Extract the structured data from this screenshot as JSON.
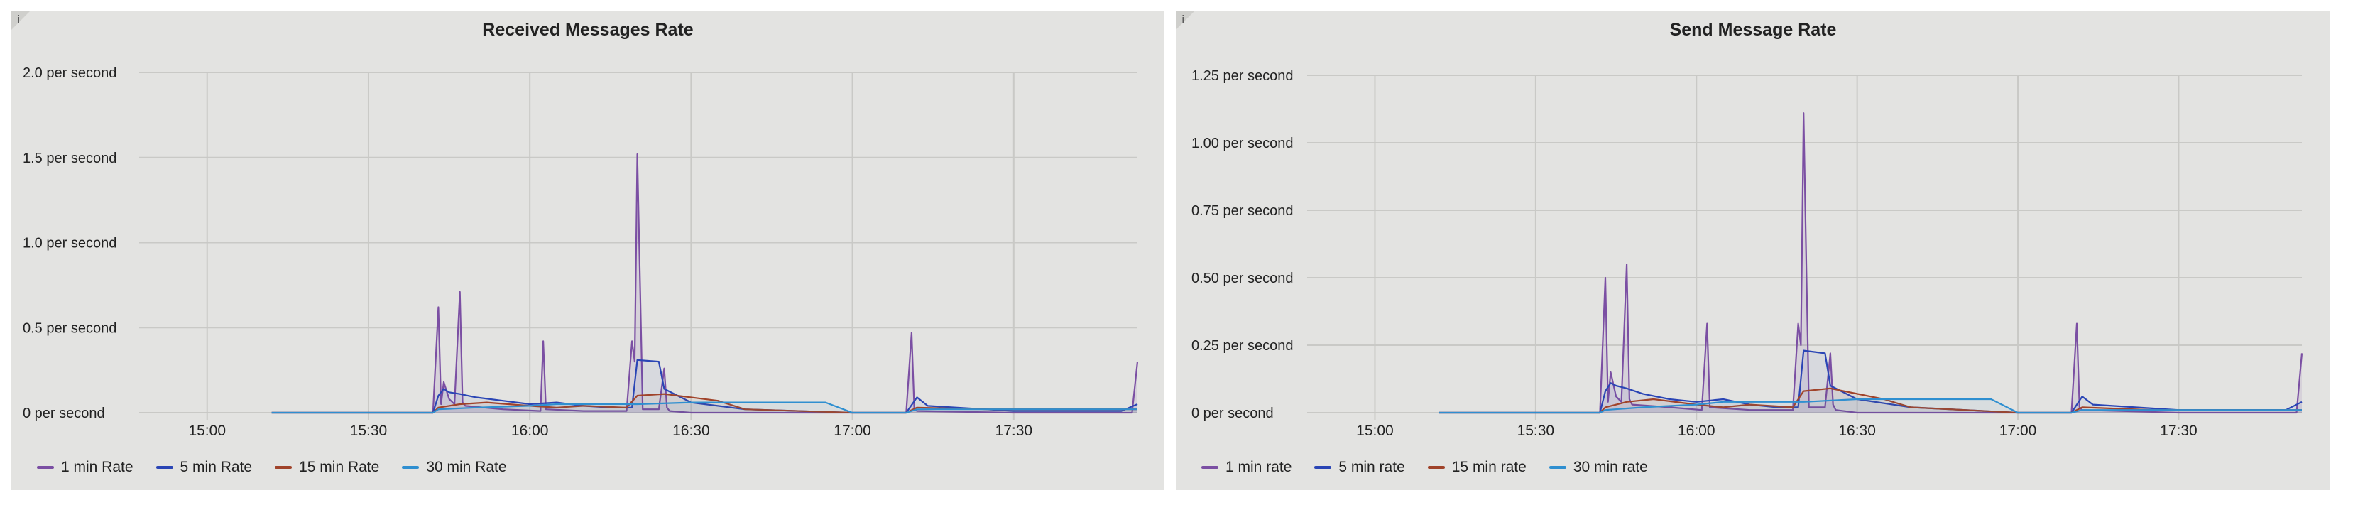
{
  "colors": {
    "series1": "#7b4fa3",
    "series2": "#2a45b5",
    "series3": "#a0432a",
    "series4": "#2f8fd0",
    "grid": "#c9c9c6",
    "panel_bg": "#e3e3e1"
  },
  "panels": [
    {
      "info_icon": "i"
    },
    {
      "info_icon": "i"
    }
  ],
  "chart_data": [
    {
      "type": "line",
      "title": "Received Messages Rate",
      "xlabel": "",
      "ylabel": "",
      "x_tick_labels": [
        "15:00",
        "15:30",
        "16:00",
        "16:30",
        "17:00",
        "17:30"
      ],
      "y_tick_labels": [
        "0 per second",
        "0.5 per second",
        "1.0 per second",
        "1.5 per second",
        "2.0 per second"
      ],
      "x_range": [
        "14:50",
        "17:53"
      ],
      "ylim": [
        0,
        2.0
      ],
      "grid": true,
      "legend_position": "bottom-left",
      "series": [
        {
          "name": "1 min Rate",
          "x": [
            "14:50",
            "15:12",
            "15:42",
            "15:43",
            "15:43.5",
            "15:44",
            "15:45",
            "15:46",
            "15:47",
            "15:47.5",
            "15:48",
            "15:55",
            "16:02",
            "16:02.5",
            "16:03",
            "16:10",
            "16:18",
            "16:19",
            "16:19.5",
            "16:20",
            "16:21",
            "16:24",
            "16:25",
            "16:25.5",
            "16:26",
            "16:30",
            "17:10",
            "17:11",
            "17:11.5",
            "17:12",
            "17:30",
            "17:52",
            "17:53"
          ],
          "y": [
            null,
            0,
            0,
            0.62,
            0.05,
            0.18,
            0.08,
            0.05,
            0.71,
            0.06,
            0.04,
            0.02,
            0.01,
            0.42,
            0.02,
            0.01,
            0.01,
            0.42,
            0.3,
            1.52,
            0.02,
            0.02,
            0.26,
            0.03,
            0.01,
            0,
            0,
            0.47,
            0.02,
            0.01,
            0,
            0,
            0.3
          ]
        },
        {
          "name": "5 min Rate",
          "x": [
            "14:50",
            "15:12",
            "15:42",
            "15:43",
            "15:44",
            "15:45",
            "15:47",
            "15:50",
            "15:55",
            "16:00",
            "16:05",
            "16:10",
            "16:15",
            "16:19",
            "16:20",
            "16:24",
            "16:25",
            "16:30",
            "16:40",
            "17:00",
            "17:10",
            "17:12",
            "17:14",
            "17:30",
            "17:50",
            "17:53"
          ],
          "y": [
            null,
            0,
            0,
            0.1,
            0.14,
            0.12,
            0.11,
            0.09,
            0.07,
            0.05,
            0.06,
            0.04,
            0.03,
            0.03,
            0.31,
            0.3,
            0.14,
            0.06,
            0.02,
            0,
            0,
            0.09,
            0.04,
            0.01,
            0.01,
            0.05
          ]
        },
        {
          "name": "15 min Rate",
          "x": [
            "14:50",
            "15:12",
            "15:42",
            "15:43",
            "15:47",
            "15:52",
            "16:00",
            "16:05",
            "16:10",
            "16:18",
            "16:20",
            "16:25",
            "16:35",
            "16:40",
            "17:00",
            "17:10",
            "17:12",
            "17:25",
            "17:53"
          ],
          "y": [
            null,
            0,
            0,
            0.03,
            0.05,
            0.06,
            0.04,
            0.03,
            0.04,
            0.03,
            0.1,
            0.11,
            0.07,
            0.02,
            0,
            0,
            0.03,
            0.02,
            0.02
          ]
        },
        {
          "name": "30 min Rate",
          "x": [
            "14:50",
            "15:12",
            "15:42",
            "15:43",
            "15:50",
            "16:00",
            "16:05",
            "16:15",
            "16:20",
            "16:30",
            "16:40",
            "16:55",
            "17:00",
            "17:10",
            "17:12",
            "17:53"
          ],
          "y": [
            null,
            0,
            0,
            0.02,
            0.03,
            0.04,
            0.05,
            0.05,
            0.05,
            0.06,
            0.06,
            0.06,
            0,
            0,
            0.02,
            0.02
          ]
        }
      ]
    },
    {
      "type": "line",
      "title": "Send Message Rate",
      "xlabel": "",
      "ylabel": "",
      "x_tick_labels": [
        "15:00",
        "15:30",
        "16:00",
        "16:30",
        "17:00",
        "17:30"
      ],
      "y_tick_labels": [
        "0 per second",
        "0.25 per second",
        "0.50 per second",
        "0.75 per second",
        "1.00 per second",
        "1.25 per second"
      ],
      "x_range": [
        "14:50",
        "17:53"
      ],
      "ylim": [
        0,
        1.25
      ],
      "grid": true,
      "legend_position": "bottom-left",
      "series": [
        {
          "name": "1 min rate",
          "x": [
            "14:50",
            "15:12",
            "15:42",
            "15:43",
            "15:43.5",
            "15:44",
            "15:45",
            "15:46",
            "15:47",
            "15:47.5",
            "15:48",
            "15:55",
            "16:01",
            "16:02",
            "16:02.5",
            "16:10",
            "16:18",
            "16:19",
            "16:19.5",
            "16:20",
            "16:21",
            "16:24",
            "16:25",
            "16:25.5",
            "16:26",
            "16:30",
            "17:10",
            "17:11",
            "17:11.5",
            "17:12",
            "17:30",
            "17:52",
            "17:53"
          ],
          "y": [
            null,
            0,
            0,
            0.5,
            0.04,
            0.15,
            0.06,
            0.04,
            0.55,
            0.05,
            0.03,
            0.02,
            0.01,
            0.33,
            0.02,
            0.01,
            0.01,
            0.33,
            0.25,
            1.11,
            0.02,
            0.02,
            0.22,
            0.03,
            0.01,
            0,
            0,
            0.33,
            0.02,
            0.01,
            0,
            0,
            0.22
          ]
        },
        {
          "name": "5 min rate",
          "x": [
            "14:50",
            "15:12",
            "15:42",
            "15:43",
            "15:44",
            "15:45",
            "15:47",
            "15:50",
            "15:55",
            "16:00",
            "16:05",
            "16:10",
            "16:15",
            "16:19",
            "16:20",
            "16:24",
            "16:25",
            "16:30",
            "16:40",
            "17:00",
            "17:10",
            "17:12",
            "17:14",
            "17:30",
            "17:50",
            "17:53"
          ],
          "y": [
            null,
            0,
            0,
            0.08,
            0.11,
            0.1,
            0.09,
            0.07,
            0.05,
            0.04,
            0.05,
            0.03,
            0.02,
            0.02,
            0.23,
            0.22,
            0.1,
            0.05,
            0.02,
            0,
            0,
            0.06,
            0.03,
            0.01,
            0.01,
            0.04
          ]
        },
        {
          "name": "15 min rate",
          "x": [
            "14:50",
            "15:12",
            "15:42",
            "15:43",
            "15:47",
            "15:52",
            "16:00",
            "16:05",
            "16:10",
            "16:18",
            "16:20",
            "16:25",
            "16:35",
            "16:40",
            "17:00",
            "17:10",
            "17:12",
            "17:25",
            "17:53"
          ],
          "y": [
            null,
            0,
            0,
            0.02,
            0.04,
            0.05,
            0.03,
            0.02,
            0.03,
            0.02,
            0.08,
            0.09,
            0.05,
            0.02,
            0,
            0,
            0.02,
            0.01,
            0.01
          ]
        },
        {
          "name": "30 min rate",
          "x": [
            "14:50",
            "15:12",
            "15:42",
            "15:43",
            "15:50",
            "16:00",
            "16:05",
            "16:15",
            "16:20",
            "16:30",
            "16:40",
            "16:55",
            "17:00",
            "17:10",
            "17:12",
            "17:53"
          ],
          "y": [
            null,
            0,
            0,
            0.01,
            0.02,
            0.03,
            0.04,
            0.04,
            0.04,
            0.05,
            0.05,
            0.05,
            0,
            0,
            0.01,
            0.01
          ]
        }
      ]
    }
  ]
}
